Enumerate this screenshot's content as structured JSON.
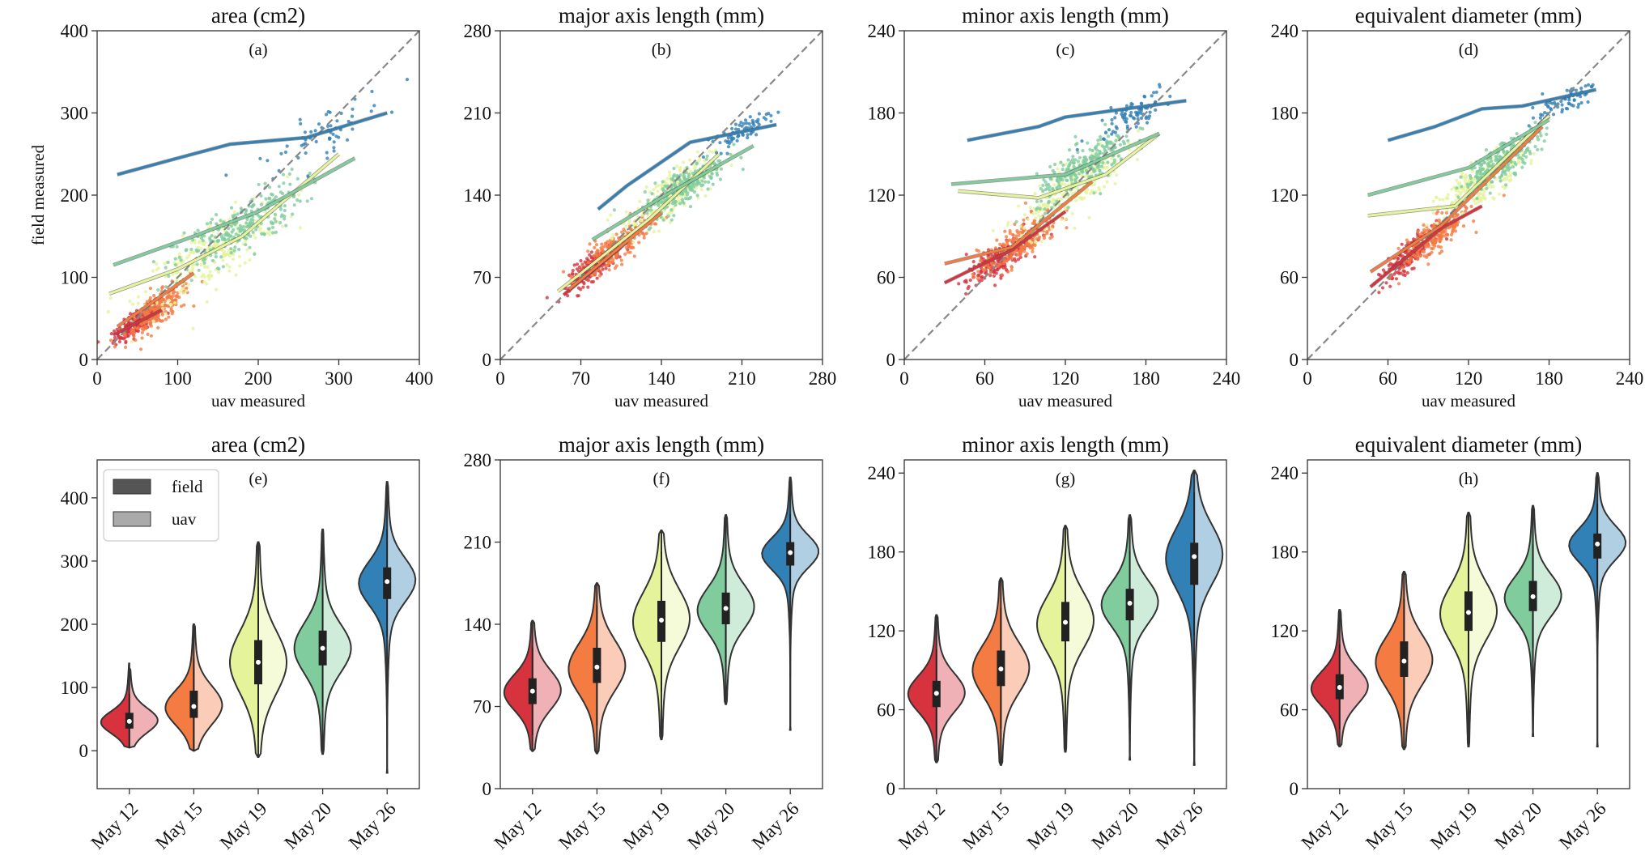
{
  "dates": [
    "May 12",
    "May 15",
    "May 19",
    "May 20",
    "May 26"
  ],
  "colors": {
    "May 12": "#d7333f",
    "May 15": "#f47c43",
    "May 19": "#e5f49b",
    "May 20": "#80cc9d",
    "May 26": "#3180b6"
  },
  "legend": {
    "field": "field",
    "uav": "uav",
    "field_color": "#555555",
    "uav_color": "#aaaaaa"
  },
  "chart_data": [
    {
      "type": "scatter",
      "panel": "(a)",
      "title": "area (cm2)",
      "xlabel": "uav measured",
      "ylabel": "field measured",
      "xlim": [
        0,
        400
      ],
      "ylim": [
        0,
        400
      ],
      "xticks": [
        "0",
        "100",
        "200",
        "300",
        "400"
      ],
      "yticks": [
        "0",
        "100",
        "200",
        "300",
        "400"
      ],
      "identity_line": true,
      "series": [
        {
          "name": "May 12",
          "cx": 50,
          "cy": 45,
          "sx": 14,
          "sy": 12,
          "n": 220,
          "line": [
            [
              20,
              30
            ],
            [
              80,
              60
            ]
          ]
        },
        {
          "name": "May 15",
          "cx": 75,
          "cy": 60,
          "sx": 20,
          "sy": 18,
          "n": 220,
          "line": [
            [
              25,
              40
            ],
            [
              120,
              105
            ]
          ]
        },
        {
          "name": "May 19",
          "cx": 145,
          "cy": 130,
          "sx": 45,
          "sy": 35,
          "n": 250,
          "line": [
            [
              15,
              80
            ],
            [
              100,
              110
            ],
            [
              180,
              150
            ],
            [
              300,
              250
            ]
          ]
        },
        {
          "name": "May 20",
          "cx": 175,
          "cy": 160,
          "sx": 40,
          "sy": 30,
          "n": 260,
          "line": [
            [
              20,
              115
            ],
            [
              120,
              150
            ],
            [
              200,
              180
            ],
            [
              320,
              245
            ]
          ]
        },
        {
          "name": "May 26",
          "cx": 280,
          "cy": 275,
          "sx": 40,
          "sy": 25,
          "n": 60,
          "line": [
            [
              25,
              225
            ],
            [
              100,
              245
            ],
            [
              165,
              262
            ],
            [
              260,
              270
            ],
            [
              360,
              300
            ]
          ]
        }
      ]
    },
    {
      "type": "scatter",
      "panel": "(b)",
      "title": "major axis length (mm)",
      "xlabel": "uav measured",
      "ylabel": "",
      "xlim": [
        0,
        280
      ],
      "ylim": [
        0,
        280
      ],
      "xticks": [
        "0",
        "70",
        "140",
        "210",
        "280"
      ],
      "yticks": [
        "0",
        "70",
        "140",
        "210",
        "280"
      ],
      "identity_line": true,
      "series": [
        {
          "name": "May 12",
          "cx": 82,
          "cy": 80,
          "sx": 11,
          "sy": 10,
          "n": 200,
          "line": [
            [
              55,
              55
            ],
            [
              110,
              100
            ]
          ]
        },
        {
          "name": "May 15",
          "cx": 100,
          "cy": 95,
          "sx": 15,
          "sy": 13,
          "n": 220,
          "line": [
            [
              60,
              60
            ],
            [
              140,
              125
            ]
          ]
        },
        {
          "name": "May 19",
          "cx": 145,
          "cy": 138,
          "sx": 20,
          "sy": 18,
          "n": 250,
          "line": [
            [
              50,
              58
            ],
            [
              130,
              120
            ],
            [
              190,
              175
            ]
          ]
        },
        {
          "name": "May 20",
          "cx": 160,
          "cy": 148,
          "sx": 18,
          "sy": 15,
          "n": 260,
          "line": [
            [
              80,
              102
            ],
            [
              140,
              138
            ],
            [
              220,
              182
            ]
          ]
        },
        {
          "name": "May 26",
          "cx": 210,
          "cy": 195,
          "sx": 12,
          "sy": 8,
          "n": 70,
          "line": [
            [
              85,
              128
            ],
            [
              110,
              148
            ],
            [
              165,
              185
            ],
            [
              240,
              200
            ]
          ]
        }
      ]
    },
    {
      "type": "scatter",
      "panel": "(c)",
      "title": "minor axis length (mm)",
      "xlabel": "uav measured",
      "ylabel": "",
      "xlim": [
        0,
        240
      ],
      "ylim": [
        0,
        240
      ],
      "xticks": [
        "0",
        "60",
        "120",
        "180",
        "240"
      ],
      "yticks": [
        "0",
        "60",
        "120",
        "180",
        "240"
      ],
      "identity_line": true,
      "series": [
        {
          "name": "May 12",
          "cx": 70,
          "cy": 72,
          "sx": 12,
          "sy": 10,
          "n": 200,
          "line": [
            [
              30,
              56
            ],
            [
              80,
              80
            ],
            [
              120,
              108
            ]
          ]
        },
        {
          "name": "May 15",
          "cx": 85,
          "cy": 85,
          "sx": 15,
          "sy": 13,
          "n": 220,
          "line": [
            [
              30,
              70
            ],
            [
              80,
              82
            ],
            [
              140,
              130
            ]
          ]
        },
        {
          "name": "May 19",
          "cx": 125,
          "cy": 125,
          "sx": 20,
          "sy": 18,
          "n": 250,
          "line": [
            [
              40,
              123
            ],
            [
              100,
              118
            ],
            [
              150,
              135
            ],
            [
              190,
              165
            ]
          ]
        },
        {
          "name": "May 20",
          "cx": 135,
          "cy": 140,
          "sx": 18,
          "sy": 15,
          "n": 260,
          "line": [
            [
              35,
              128
            ],
            [
              120,
              135
            ],
            [
              190,
              165
            ]
          ]
        },
        {
          "name": "May 26",
          "cx": 170,
          "cy": 180,
          "sx": 15,
          "sy": 10,
          "n": 80,
          "line": [
            [
              47,
              160
            ],
            [
              100,
              170
            ],
            [
              120,
              177
            ],
            [
              210,
              189
            ]
          ]
        }
      ]
    },
    {
      "type": "scatter",
      "panel": "(d)",
      "title": "equivalent diameter (mm)",
      "xlabel": "uav measured",
      "ylabel": "",
      "xlim": [
        0,
        240
      ],
      "ylim": [
        0,
        240
      ],
      "xticks": [
        "0",
        "60",
        "120",
        "180",
        "240"
      ],
      "yticks": [
        "0",
        "60",
        "120",
        "180",
        "240"
      ],
      "identity_line": true,
      "series": [
        {
          "name": "May 12",
          "cx": 75,
          "cy": 75,
          "sx": 9,
          "sy": 9,
          "n": 200,
          "line": [
            [
              47,
              53
            ],
            [
              100,
              96
            ],
            [
              130,
              112
            ]
          ]
        },
        {
          "name": "May 15",
          "cx": 95,
          "cy": 90,
          "sx": 12,
          "sy": 11,
          "n": 220,
          "line": [
            [
              47,
              64
            ],
            [
              100,
              98
            ],
            [
              175,
              170
            ]
          ]
        },
        {
          "name": "May 19",
          "cx": 130,
          "cy": 130,
          "sx": 16,
          "sy": 14,
          "n": 250,
          "line": [
            [
              45,
              105
            ],
            [
              110,
              112
            ],
            [
              180,
              178
            ]
          ]
        },
        {
          "name": "May 20",
          "cx": 145,
          "cy": 145,
          "sx": 14,
          "sy": 12,
          "n": 260,
          "line": [
            [
              45,
              120
            ],
            [
              120,
              140
            ],
            [
              180,
              175
            ]
          ]
        },
        {
          "name": "May 26",
          "cx": 190,
          "cy": 188,
          "sx": 12,
          "sy": 8,
          "n": 70,
          "line": [
            [
              60,
              160
            ],
            [
              95,
              170
            ],
            [
              130,
              183
            ],
            [
              160,
              185
            ],
            [
              215,
              197
            ]
          ]
        }
      ]
    },
    {
      "type": "violin",
      "panel": "(e)",
      "title": "area (cm2)",
      "ylim": [
        -60,
        460
      ],
      "yticks": [
        0,
        100,
        200,
        300,
        400
      ],
      "categories": [
        "May 12",
        "May 15",
        "May 19",
        "May 20",
        "May 26"
      ],
      "series": [
        {
          "name": "May 12",
          "field": {
            "min": 5,
            "q1": 35,
            "median": 45,
            "q3": 58,
            "max": 138
          },
          "uav": {
            "min": 5,
            "q1": 35,
            "median": 48,
            "q3": 60,
            "max": 130
          }
        },
        {
          "name": "May 15",
          "field": {
            "min": 0,
            "q1": 52,
            "median": 68,
            "q3": 88,
            "max": 200
          },
          "uav": {
            "min": 0,
            "q1": 55,
            "median": 72,
            "q3": 95,
            "max": 200
          }
        },
        {
          "name": "May 19",
          "field": {
            "min": -10,
            "q1": 105,
            "median": 140,
            "q3": 170,
            "max": 330
          },
          "uav": {
            "min": -10,
            "q1": 110,
            "median": 140,
            "q3": 175,
            "max": 330
          }
        },
        {
          "name": "May 20",
          "field": {
            "min": -5,
            "q1": 135,
            "median": 162,
            "q3": 188,
            "max": 350
          },
          "uav": {
            "min": -5,
            "q1": 140,
            "median": 162,
            "q3": 190,
            "max": 350
          }
        },
        {
          "name": "May 26",
          "field": {
            "min": -35,
            "q1": 240,
            "median": 265,
            "q3": 285,
            "max": 425
          },
          "uav": {
            "min": -35,
            "q1": 245,
            "median": 270,
            "q3": 290,
            "max": 425
          }
        }
      ]
    },
    {
      "type": "violin",
      "panel": "(f)",
      "title": "major axis length (mm)",
      "ylim": [
        0,
        280
      ],
      "yticks": [
        0,
        70,
        140,
        210,
        280
      ],
      "categories": [
        "May 12",
        "May 15",
        "May 19",
        "May 20",
        "May 26"
      ],
      "series": [
        {
          "name": "May 12",
          "field": {
            "min": 32,
            "q1": 72,
            "median": 82,
            "q3": 92,
            "max": 143
          },
          "uav": {
            "min": 32,
            "q1": 72,
            "median": 84,
            "q3": 94,
            "max": 143
          }
        },
        {
          "name": "May 15",
          "field": {
            "min": 30,
            "q1": 90,
            "median": 102,
            "q3": 118,
            "max": 175
          },
          "uav": {
            "min": 30,
            "q1": 92,
            "median": 105,
            "q3": 120,
            "max": 175
          }
        },
        {
          "name": "May 19",
          "field": {
            "min": 42,
            "q1": 125,
            "median": 142,
            "q3": 158,
            "max": 220
          },
          "uav": {
            "min": 42,
            "q1": 128,
            "median": 145,
            "q3": 160,
            "max": 220
          }
        },
        {
          "name": "May 20",
          "field": {
            "min": 72,
            "q1": 140,
            "median": 152,
            "q3": 165,
            "max": 233
          },
          "uav": {
            "min": 72,
            "q1": 142,
            "median": 155,
            "q3": 167,
            "max": 233
          }
        },
        {
          "name": "May 26",
          "field": {
            "min": 50,
            "q1": 190,
            "median": 200,
            "q3": 208,
            "max": 265
          },
          "uav": {
            "min": 50,
            "q1": 192,
            "median": 202,
            "q3": 210,
            "max": 265
          }
        }
      ]
    },
    {
      "type": "violin",
      "panel": "(g)",
      "title": "minor axis length (mm)",
      "ylim": [
        0,
        250
      ],
      "yticks": [
        0,
        60,
        120,
        180,
        240
      ],
      "categories": [
        "May 12",
        "May 15",
        "May 19",
        "May 20",
        "May 26"
      ],
      "series": [
        {
          "name": "May 12",
          "field": {
            "min": 20,
            "q1": 62,
            "median": 72,
            "q3": 80,
            "max": 132
          },
          "uav": {
            "min": 20,
            "q1": 63,
            "median": 73,
            "q3": 82,
            "max": 132
          }
        },
        {
          "name": "May 15",
          "field": {
            "min": 18,
            "q1": 78,
            "median": 90,
            "q3": 103,
            "max": 160
          },
          "uav": {
            "min": 18,
            "q1": 80,
            "median": 92,
            "q3": 105,
            "max": 160
          }
        },
        {
          "name": "May 19",
          "field": {
            "min": 28,
            "q1": 112,
            "median": 125,
            "q3": 140,
            "max": 200
          },
          "uav": {
            "min": 28,
            "q1": 114,
            "median": 128,
            "q3": 142,
            "max": 200
          }
        },
        {
          "name": "May 20",
          "field": {
            "min": 22,
            "q1": 128,
            "median": 140,
            "q3": 150,
            "max": 208
          },
          "uav": {
            "min": 22,
            "q1": 130,
            "median": 142,
            "q3": 152,
            "max": 208
          }
        },
        {
          "name": "May 26",
          "field": {
            "min": 18,
            "q1": 155,
            "median": 175,
            "q3": 185,
            "max": 242
          },
          "uav": {
            "min": 18,
            "q1": 158,
            "median": 178,
            "q3": 187,
            "max": 242
          }
        }
      ]
    },
    {
      "type": "violin",
      "panel": "(h)",
      "title": "equivalent diameter (mm)",
      "ylim": [
        0,
        250
      ],
      "yticks": [
        0,
        60,
        120,
        180,
        240
      ],
      "categories": [
        "May 12",
        "May 15",
        "May 19",
        "May 20",
        "May 26"
      ],
      "series": [
        {
          "name": "May 12",
          "field": {
            "min": 32,
            "q1": 68,
            "median": 76,
            "q3": 85,
            "max": 136
          },
          "uav": {
            "min": 32,
            "q1": 69,
            "median": 78,
            "q3": 87,
            "max": 136
          }
        },
        {
          "name": "May 15",
          "field": {
            "min": 30,
            "q1": 85,
            "median": 96,
            "q3": 110,
            "max": 165
          },
          "uav": {
            "min": 30,
            "q1": 87,
            "median": 98,
            "q3": 112,
            "max": 165
          }
        },
        {
          "name": "May 19",
          "field": {
            "min": 32,
            "q1": 120,
            "median": 133,
            "q3": 148,
            "max": 210
          },
          "uav": {
            "min": 32,
            "q1": 122,
            "median": 135,
            "q3": 150,
            "max": 210
          }
        },
        {
          "name": "May 20",
          "field": {
            "min": 40,
            "q1": 135,
            "median": 145,
            "q3": 156,
            "max": 215
          },
          "uav": {
            "min": 40,
            "q1": 137,
            "median": 147,
            "q3": 158,
            "max": 215
          }
        },
        {
          "name": "May 26",
          "field": {
            "min": 32,
            "q1": 175,
            "median": 185,
            "q3": 192,
            "max": 240
          },
          "uav": {
            "min": 32,
            "q1": 177,
            "median": 187,
            "q3": 194,
            "max": 240
          }
        }
      ]
    }
  ]
}
